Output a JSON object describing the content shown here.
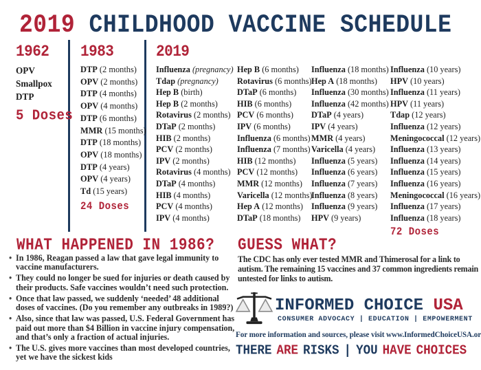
{
  "colors": {
    "red": "#b02338",
    "navy": "#1e3a5e",
    "ink": "#1d1d1d"
  },
  "title": {
    "year": "2019",
    "text": "CHILDHOOD VACCINE SCHEDULE"
  },
  "col1962": {
    "year": "1962",
    "items": [
      {
        "n": "OPV"
      },
      {
        "n": "Smallpox"
      },
      {
        "n": "DTP"
      }
    ],
    "doses": "5 Doses"
  },
  "col1983": {
    "year": "1983",
    "items": [
      {
        "n": "DTP",
        "d": "(2 months)"
      },
      {
        "n": "OPV",
        "d": "(2 months)"
      },
      {
        "n": "DTP",
        "d": "(4 months)"
      },
      {
        "n": "OPV",
        "d": "(4 months)"
      },
      {
        "n": "DTP",
        "d": "(6 months)"
      },
      {
        "n": "MMR",
        "d": "(15 months)"
      },
      {
        "n": "DTP",
        "d": "(18 months)"
      },
      {
        "n": "OPV",
        "d": "(18 months)"
      },
      {
        "n": "DTP",
        "d": "(4 years)"
      },
      {
        "n": "OPV",
        "d": "(4 years)"
      },
      {
        "n": "Td",
        "d": "(15 years)"
      }
    ],
    "doses": "24 Doses"
  },
  "col2019": {
    "year": "2019",
    "sub1": [
      {
        "n": "Influenza",
        "d": "(pregnancy)",
        "i": true
      },
      {
        "n": "Tdap",
        "d": "(pregnancy)",
        "i": true
      },
      {
        "n": "Hep B",
        "d": "(birth)"
      },
      {
        "n": "Hep B",
        "d": "(2 months)"
      },
      {
        "n": "Rotavirus",
        "d": "(2 months)"
      },
      {
        "n": "DTaP",
        "d": "(2 months)"
      },
      {
        "n": "HIB",
        "d": "(2 months)"
      },
      {
        "n": "PCV",
        "d": "(2 months)"
      },
      {
        "n": "IPV",
        "d": "(2 months)"
      },
      {
        "n": "Rotavirus",
        "d": "(4 months)"
      },
      {
        "n": "DTaP",
        "d": "(4 months)"
      },
      {
        "n": "HIB",
        "d": "(4 months)"
      },
      {
        "n": "PCV",
        "d": "(4 months)"
      },
      {
        "n": "IPV",
        "d": "(4 months)"
      }
    ],
    "sub2": [
      {
        "n": "Hep B",
        "d": "(6 months)"
      },
      {
        "n": "Rotavirus",
        "d": "(6 months)"
      },
      {
        "n": "DTaP",
        "d": "(6 months)"
      },
      {
        "n": "HIB",
        "d": "(6 months)"
      },
      {
        "n": "PCV",
        "d": "(6 months)"
      },
      {
        "n": "IPV",
        "d": "(6 months)"
      },
      {
        "n": "Influenza",
        "d": "(6 months)"
      },
      {
        "n": "Influenza",
        "d": "(7 months)"
      },
      {
        "n": "HIB",
        "d": "(12 months)"
      },
      {
        "n": "PCV",
        "d": "(12 months)"
      },
      {
        "n": "MMR",
        "d": "(12 months)"
      },
      {
        "n": "Varicella",
        "d": "(12 months)"
      },
      {
        "n": "Hep A",
        "d": "(12 months)"
      },
      {
        "n": "DTaP",
        "d": "(18 months)"
      }
    ],
    "sub3": [
      {
        "n": "Influenza",
        "d": "(18 months)"
      },
      {
        "n": "Hep A",
        "d": "(18 months)"
      },
      {
        "n": "Influenza",
        "d": "(30 months)"
      },
      {
        "n": "Influenza",
        "d": "(42 months)"
      },
      {
        "n": "DTaP",
        "d": "(4 years)"
      },
      {
        "n": "IPV",
        "d": "(4 years)"
      },
      {
        "n": "MMR",
        "d": "(4 years)"
      },
      {
        "n": "Varicella",
        "d": "(4 years)"
      },
      {
        "n": "Influenza",
        "d": "(5 years)"
      },
      {
        "n": "Influenza",
        "d": "(6 years)"
      },
      {
        "n": "Influenza",
        "d": "(7 years)"
      },
      {
        "n": "Influenza",
        "d": "(8 years)"
      },
      {
        "n": "Influenza",
        "d": "(9 years)"
      },
      {
        "n": "HPV",
        "d": "(9 years)"
      }
    ],
    "sub4": [
      {
        "n": "Influenza",
        "d": "(10 years)"
      },
      {
        "n": "HPV",
        "d": "(10 years)"
      },
      {
        "n": "Influenza",
        "d": "(11 years)"
      },
      {
        "n": "HPV",
        "d": "(11 years)"
      },
      {
        "n": "Tdap",
        "d": "(12 years)"
      },
      {
        "n": "Influenza",
        "d": "(12 years)"
      },
      {
        "n": "Meningococcal",
        "d": "(12 years)"
      },
      {
        "n": "Influenza",
        "d": "(13 years)"
      },
      {
        "n": "Influenza",
        "d": "(14 years)"
      },
      {
        "n": "Influenza",
        "d": "(15 years)"
      },
      {
        "n": "Influenza",
        "d": "(16 years)"
      },
      {
        "n": "Meningococcal",
        "d": "(16 years)"
      },
      {
        "n": "Influenza",
        "d": "(17 years)"
      },
      {
        "n": "Influenza",
        "d": "(18 years)"
      }
    ],
    "doses": "72 Doses"
  },
  "what_happened": {
    "heading": "WHAT HAPPENED IN 1986?",
    "bullets": [
      "In 1986, Reagan passed a law that gave legal immunity to vaccine manufacturers.",
      "They could no longer be sued for injuries or death caused by their products. Safe vaccines wouldn’t need such protection.",
      "Once that law passed, we suddenly ‘needed’ 48 additional doses of vaccines. (Do you remember any outbreaks in 1989?)",
      "Also, since that law was passed, U.S. Federal Government has paid out more than $4 Billion in vaccine injury compensation, and that’s only a fraction of actual injuries.",
      "The U.S. gives more vaccines than most developed countries, yet we have the sickest kids"
    ]
  },
  "guess_what": {
    "heading": "GUESS WHAT?",
    "text": "The CDC has only ever tested MMR and Thimerosal for a link to autism. The remaining 15 vaccines and 37 common ingredients remain untested for links to autism."
  },
  "logo": {
    "icon": "scales-of-justice",
    "name_main": "INFORMED CHOICE",
    "name_accent": "USA",
    "tagline": "CONSUMER ADVOCACY | EDUCATION | EMPOWERMENT"
  },
  "footer": {
    "info": "For more information and sources, please visit www.InformedChoiceUSA.org",
    "slogan": [
      {
        "t": "THERE",
        "c": "navy"
      },
      {
        "t": "ARE",
        "c": "red"
      },
      {
        "t": "RISKS",
        "c": "navy"
      },
      {
        "t": "|",
        "c": "navy"
      },
      {
        "t": "YOU",
        "c": "navy"
      },
      {
        "t": "HAVE",
        "c": "red"
      },
      {
        "t": "CHOICES",
        "c": "red"
      }
    ]
  }
}
